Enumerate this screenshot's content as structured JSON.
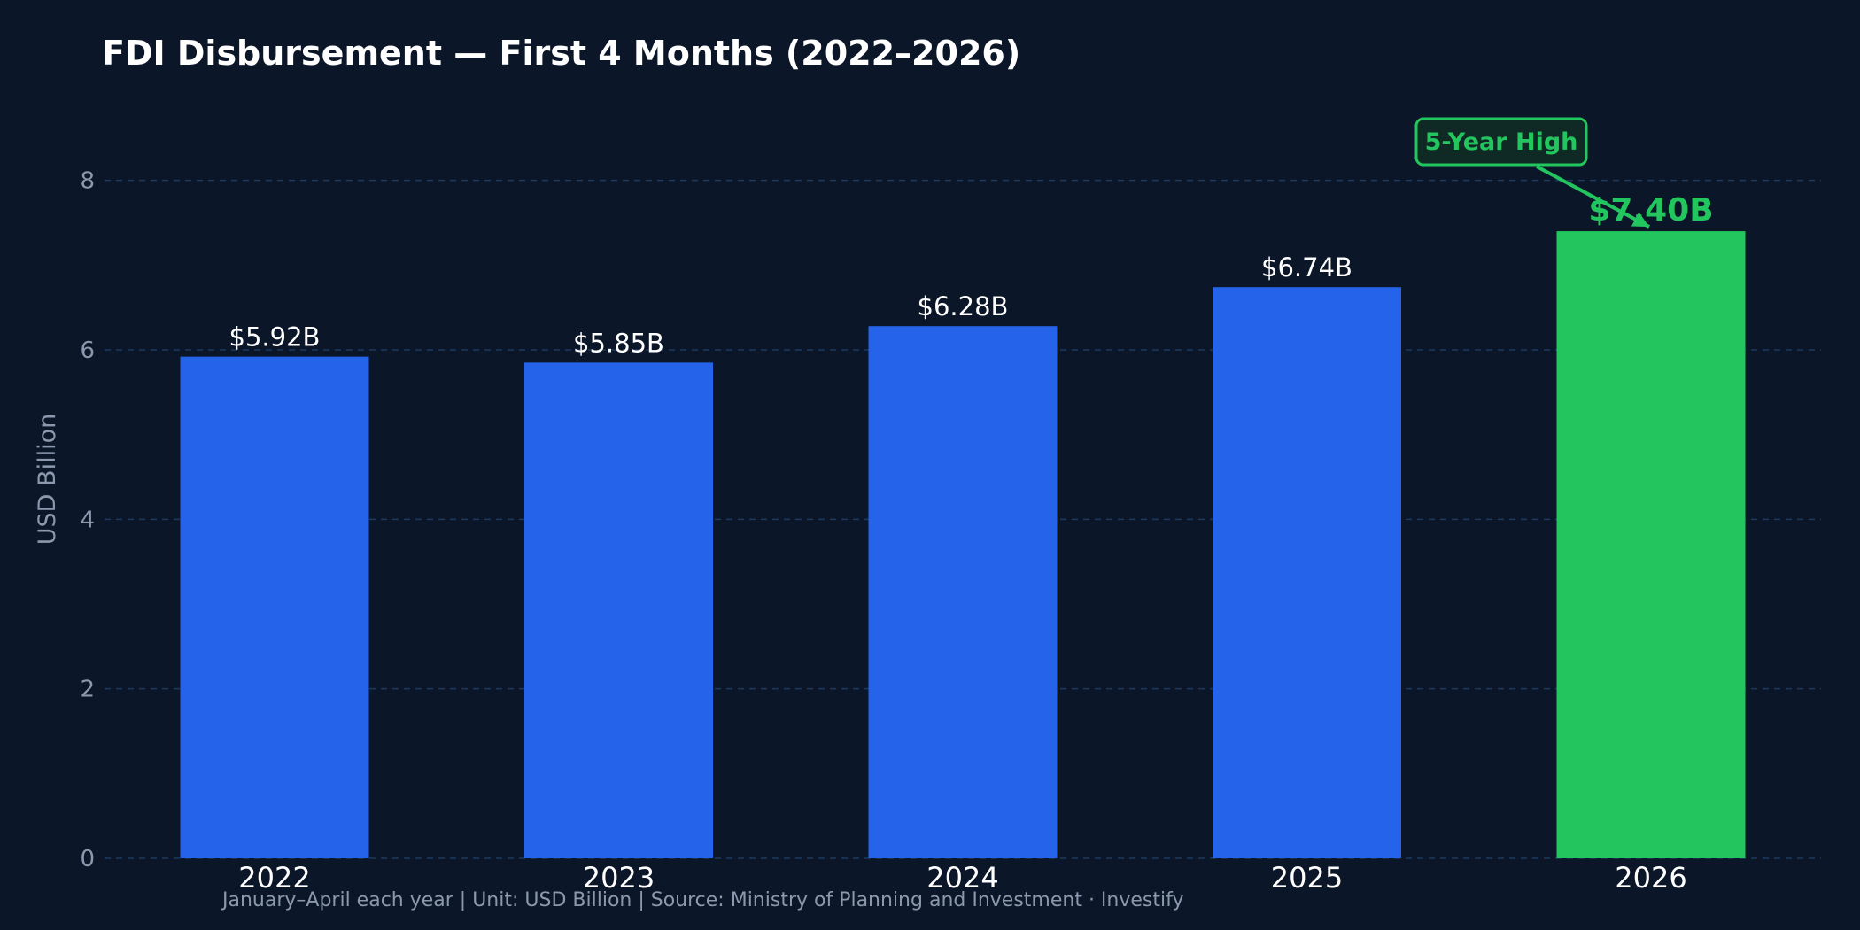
{
  "chart_data": {
    "type": "bar",
    "title": "FDI Disbursement — First 4 Months (2022–2026)",
    "ylabel": "USD Billion",
    "xlabel": "",
    "categories": [
      "2022",
      "2023",
      "2024",
      "2025",
      "2026"
    ],
    "values": [
      5.92,
      5.85,
      6.28,
      6.74,
      7.4
    ],
    "value_labels": [
      "$5.92B",
      "$5.85B",
      "$6.28B",
      "$6.74B",
      "$7.40B"
    ],
    "ylim": [
      0,
      9
    ],
    "yticks": [
      0,
      2,
      4,
      6,
      8
    ],
    "grid": true,
    "highlight_index": 4,
    "annotation": {
      "text": "5-Year High",
      "target_index": 4
    },
    "footer": "January–April each year  |  Unit: USD Billion  |  Source: Ministry of Planning and Investment  ·  Investify",
    "colors": {
      "background": "#0b1628",
      "bar": "#2563eb",
      "highlight_bar": "#22c55e",
      "grid": "#1e3a5f",
      "text": "#ffffff",
      "muted_text": "#8b98ad",
      "annotation_box": "#0f2a24"
    }
  }
}
